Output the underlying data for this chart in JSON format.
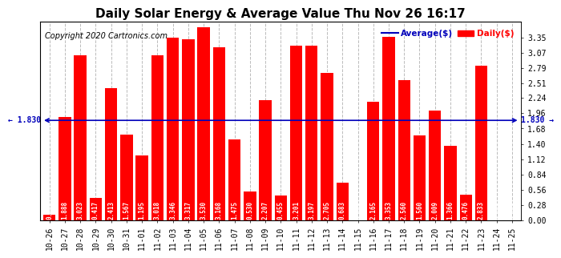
{
  "title": "Daily Solar Energy & Average Value Thu Nov 26 16:17",
  "copyright": "Copyright 2020 Cartronics.com",
  "categories": [
    "10-26",
    "10-27",
    "10-28",
    "10-29",
    "10-30",
    "10-31",
    "11-01",
    "11-02",
    "11-03",
    "11-04",
    "11-05",
    "11-06",
    "11-07",
    "11-08",
    "11-09",
    "11-10",
    "11-11",
    "11-12",
    "11-13",
    "11-14",
    "11-15",
    "11-16",
    "11-17",
    "11-18",
    "11-19",
    "11-20",
    "11-21",
    "11-22",
    "11-23",
    "11-24",
    "11-25"
  ],
  "values": [
    0.098,
    1.888,
    3.023,
    0.417,
    2.413,
    1.567,
    1.195,
    3.018,
    3.346,
    3.317,
    3.53,
    3.168,
    1.475,
    0.53,
    2.207,
    0.455,
    3.201,
    3.197,
    2.705,
    0.683,
    0.0,
    2.165,
    3.353,
    2.56,
    1.56,
    2.009,
    1.366,
    0.476,
    2.833,
    0.0,
    0.0
  ],
  "average": 1.83,
  "bar_color": "#ff0000",
  "average_color": "#0000bb",
  "background_color": "#ffffff",
  "plot_bg_color": "#ffffff",
  "ylim": [
    0.0,
    3.63
  ],
  "yticks": [
    0.0,
    0.28,
    0.56,
    0.84,
    1.12,
    1.4,
    1.68,
    1.96,
    2.24,
    2.51,
    2.79,
    3.07,
    3.35
  ],
  "title_fontsize": 11,
  "copyright_fontsize": 7,
  "value_fontsize": 5.5,
  "tick_fontsize": 7,
  "legend_avg_label": "Average($)",
  "legend_daily_label": "Daily($)",
  "avg_label_left": "← 1.830",
  "avg_label_right": "1.830 →"
}
